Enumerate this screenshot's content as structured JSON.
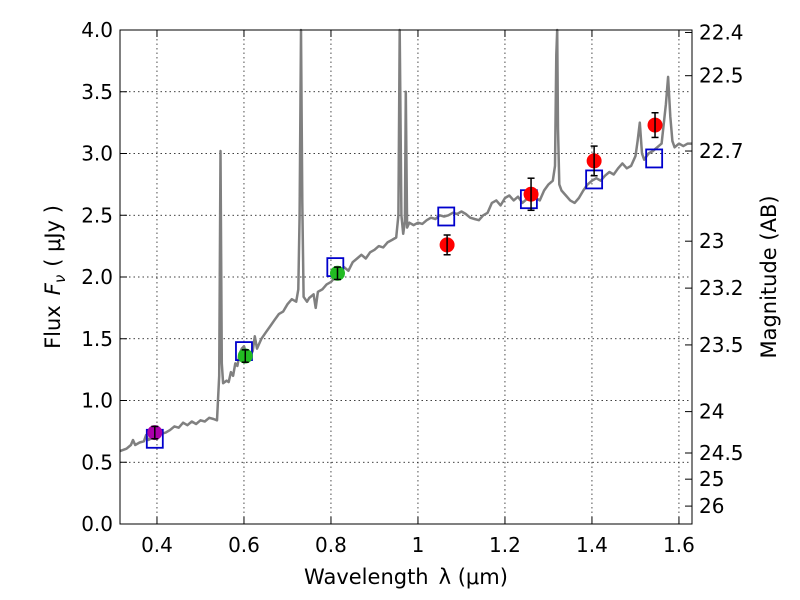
{
  "chart_data": {
    "type": "scatter",
    "xlabel_main": "Wavelength",
    "xlabel_math": "λ (μm)",
    "ylabel_main": "Flux",
    "ylabel_math": "F",
    "ylabel_sub": "ν",
    "ylabel_units": "( μJy )",
    "y2label": "Magnitude (AB)",
    "xlim": [
      0.315,
      1.63
    ],
    "ylim": [
      0.0,
      4.0
    ],
    "grid": true,
    "x_ticks": [
      {
        "value": 0.4,
        "label": "0.4"
      },
      {
        "value": 0.6,
        "label": "0.6"
      },
      {
        "value": 0.8,
        "label": "0.8"
      },
      {
        "value": 1.0,
        "label": "1"
      },
      {
        "value": 1.2,
        "label": "1.2"
      },
      {
        "value": 1.4,
        "label": "1.4"
      },
      {
        "value": 1.6,
        "label": "1.6"
      }
    ],
    "y_ticks": [
      {
        "value": 0.0,
        "label": "0.0"
      },
      {
        "value": 0.5,
        "label": "0.5"
      },
      {
        "value": 1.0,
        "label": "1.0"
      },
      {
        "value": 1.5,
        "label": "1.5"
      },
      {
        "value": 2.0,
        "label": "2.0"
      },
      {
        "value": 2.5,
        "label": "2.5"
      },
      {
        "value": 3.0,
        "label": "3.0"
      },
      {
        "value": 3.5,
        "label": "3.5"
      },
      {
        "value": 4.0,
        "label": "4.0"
      }
    ],
    "y2_ticks": [
      {
        "flux": 3.98,
        "label": "22.4"
      },
      {
        "flux": 3.63,
        "label": "22.5"
      },
      {
        "flux": 3.02,
        "label": "22.7"
      },
      {
        "flux": 2.29,
        "label": "23"
      },
      {
        "flux": 1.91,
        "label": "23.2"
      },
      {
        "flux": 1.45,
        "label": "23.5"
      },
      {
        "flux": 0.91,
        "label": "24"
      },
      {
        "flux": 0.575,
        "label": "24.5"
      },
      {
        "flux": 0.363,
        "label": "25"
      },
      {
        "flux": 0.145,
        "label": "26"
      }
    ],
    "observed": [
      {
        "x": 0.395,
        "y": 0.74,
        "err": 0.05,
        "color": "#aa00aa"
      },
      {
        "x": 0.603,
        "y": 1.36,
        "err": 0.05,
        "color": "#22bb22"
      },
      {
        "x": 0.815,
        "y": 2.03,
        "err": 0.05,
        "color": "#22bb22"
      },
      {
        "x": 1.067,
        "y": 2.26,
        "err": 0.08,
        "color": "#ff0000"
      },
      {
        "x": 1.26,
        "y": 2.67,
        "err": 0.13,
        "color": "#ff0000"
      },
      {
        "x": 1.405,
        "y": 2.94,
        "err": 0.12,
        "color": "#ff0000"
      },
      {
        "x": 1.545,
        "y": 3.23,
        "err": 0.1,
        "color": "#ff0000"
      }
    ],
    "model_photometry": [
      {
        "x": 0.395,
        "y": 0.69
      },
      {
        "x": 0.6,
        "y": 1.4
      },
      {
        "x": 0.81,
        "y": 2.08
      },
      {
        "x": 1.065,
        "y": 2.49
      },
      {
        "x": 1.255,
        "y": 2.63
      },
      {
        "x": 1.405,
        "y": 2.79
      },
      {
        "x": 1.543,
        "y": 2.96
      }
    ],
    "sed_spectrum": [
      [
        0.315,
        0.59
      ],
      [
        0.33,
        0.61
      ],
      [
        0.34,
        0.64
      ],
      [
        0.345,
        0.68
      ],
      [
        0.35,
        0.64
      ],
      [
        0.36,
        0.66
      ],
      [
        0.37,
        0.67
      ],
      [
        0.375,
        0.72
      ],
      [
        0.38,
        0.68
      ],
      [
        0.39,
        0.7
      ],
      [
        0.4,
        0.71
      ],
      [
        0.41,
        0.73
      ],
      [
        0.42,
        0.74
      ],
      [
        0.43,
        0.76
      ],
      [
        0.44,
        0.79
      ],
      [
        0.45,
        0.78
      ],
      [
        0.46,
        0.82
      ],
      [
        0.47,
        0.8
      ],
      [
        0.48,
        0.83
      ],
      [
        0.49,
        0.81
      ],
      [
        0.5,
        0.84
      ],
      [
        0.51,
        0.83
      ],
      [
        0.52,
        0.86
      ],
      [
        0.53,
        0.85
      ],
      [
        0.538,
        0.84
      ],
      [
        0.543,
        1.2
      ],
      [
        0.546,
        3.02
      ],
      [
        0.549,
        1.3
      ],
      [
        0.552,
        1.14
      ],
      [
        0.56,
        1.16
      ],
      [
        0.565,
        1.15
      ],
      [
        0.57,
        1.23
      ],
      [
        0.575,
        1.2
      ],
      [
        0.58,
        1.3
      ],
      [
        0.585,
        1.28
      ],
      [
        0.59,
        1.38
      ],
      [
        0.595,
        1.42
      ],
      [
        0.6,
        1.44
      ],
      [
        0.605,
        1.38
      ],
      [
        0.61,
        1.34
      ],
      [
        0.62,
        1.4
      ],
      [
        0.625,
        1.52
      ],
      [
        0.63,
        1.42
      ],
      [
        0.64,
        1.5
      ],
      [
        0.65,
        1.55
      ],
      [
        0.66,
        1.6
      ],
      [
        0.67,
        1.65
      ],
      [
        0.68,
        1.7
      ],
      [
        0.69,
        1.72
      ],
      [
        0.7,
        1.78
      ],
      [
        0.71,
        1.82
      ],
      [
        0.72,
        1.8
      ],
      [
        0.725,
        1.9
      ],
      [
        0.728,
        2.5
      ],
      [
        0.731,
        4.0
      ],
      [
        0.734,
        2.6
      ],
      [
        0.737,
        1.84
      ],
      [
        0.745,
        1.8
      ],
      [
        0.75,
        1.83
      ],
      [
        0.76,
        1.86
      ],
      [
        0.765,
        1.75
      ],
      [
        0.77,
        1.88
      ],
      [
        0.78,
        1.9
      ],
      [
        0.79,
        1.94
      ],
      [
        0.8,
        1.96
      ],
      [
        0.81,
        2.0
      ],
      [
        0.82,
        2.04
      ],
      [
        0.83,
        2.08
      ],
      [
        0.84,
        2.05
      ],
      [
        0.85,
        2.12
      ],
      [
        0.86,
        2.15
      ],
      [
        0.87,
        2.18
      ],
      [
        0.88,
        2.15
      ],
      [
        0.89,
        2.2
      ],
      [
        0.9,
        2.22
      ],
      [
        0.91,
        2.25
      ],
      [
        0.92,
        2.24
      ],
      [
        0.93,
        2.28
      ],
      [
        0.94,
        2.3
      ],
      [
        0.95,
        2.32
      ],
      [
        0.955,
        2.5
      ],
      [
        0.958,
        4.0
      ],
      [
        0.962,
        2.5
      ],
      [
        0.966,
        2.35
      ],
      [
        0.97,
        2.45
      ],
      [
        0.972,
        3.5
      ],
      [
        0.975,
        2.4
      ],
      [
        0.98,
        2.44
      ],
      [
        0.99,
        2.42
      ],
      [
        1.0,
        2.44
      ],
      [
        1.01,
        2.43
      ],
      [
        1.02,
        2.46
      ],
      [
        1.03,
        2.48
      ],
      [
        1.04,
        2.47
      ],
      [
        1.05,
        2.5
      ],
      [
        1.06,
        2.49
      ],
      [
        1.07,
        2.5
      ],
      [
        1.08,
        2.52
      ],
      [
        1.09,
        2.51
      ],
      [
        1.1,
        2.53
      ],
      [
        1.11,
        2.51
      ],
      [
        1.12,
        2.48
      ],
      [
        1.13,
        2.47
      ],
      [
        1.14,
        2.46
      ],
      [
        1.15,
        2.5
      ],
      [
        1.16,
        2.52
      ],
      [
        1.17,
        2.6
      ],
      [
        1.18,
        2.62
      ],
      [
        1.19,
        2.58
      ],
      [
        1.2,
        2.64
      ],
      [
        1.21,
        2.66
      ],
      [
        1.22,
        2.62
      ],
      [
        1.23,
        2.65
      ],
      [
        1.24,
        2.6
      ],
      [
        1.25,
        2.63
      ],
      [
        1.26,
        2.62
      ],
      [
        1.27,
        2.64
      ],
      [
        1.28,
        2.62
      ],
      [
        1.29,
        2.7
      ],
      [
        1.3,
        2.75
      ],
      [
        1.31,
        2.78
      ],
      [
        1.315,
        2.9
      ],
      [
        1.318,
        3.8
      ],
      [
        1.32,
        4.0
      ],
      [
        1.322,
        3.2
      ],
      [
        1.325,
        2.75
      ],
      [
        1.33,
        2.7
      ],
      [
        1.34,
        2.66
      ],
      [
        1.35,
        2.62
      ],
      [
        1.36,
        2.6
      ],
      [
        1.37,
        2.64
      ],
      [
        1.38,
        2.7
      ],
      [
        1.39,
        2.75
      ],
      [
        1.4,
        2.78
      ],
      [
        1.41,
        2.8
      ],
      [
        1.42,
        2.78
      ],
      [
        1.43,
        2.82
      ],
      [
        1.44,
        2.85
      ],
      [
        1.45,
        2.83
      ],
      [
        1.46,
        2.88
      ],
      [
        1.47,
        2.92
      ],
      [
        1.48,
        2.88
      ],
      [
        1.49,
        2.9
      ],
      [
        1.5,
        2.98
      ],
      [
        1.505,
        3.1
      ],
      [
        1.51,
        3.25
      ],
      [
        1.515,
        3.0
      ],
      [
        1.52,
        2.95
      ],
      [
        1.53,
        3.0
      ],
      [
        1.54,
        3.02
      ],
      [
        1.55,
        3.05
      ],
      [
        1.56,
        3.08
      ],
      [
        1.57,
        3.4
      ],
      [
        1.575,
        3.62
      ],
      [
        1.58,
        3.3
      ],
      [
        1.585,
        3.1
      ],
      [
        1.59,
        3.05
      ],
      [
        1.6,
        3.08
      ],
      [
        1.61,
        3.06
      ],
      [
        1.62,
        3.08
      ],
      [
        1.63,
        3.08
      ]
    ]
  }
}
